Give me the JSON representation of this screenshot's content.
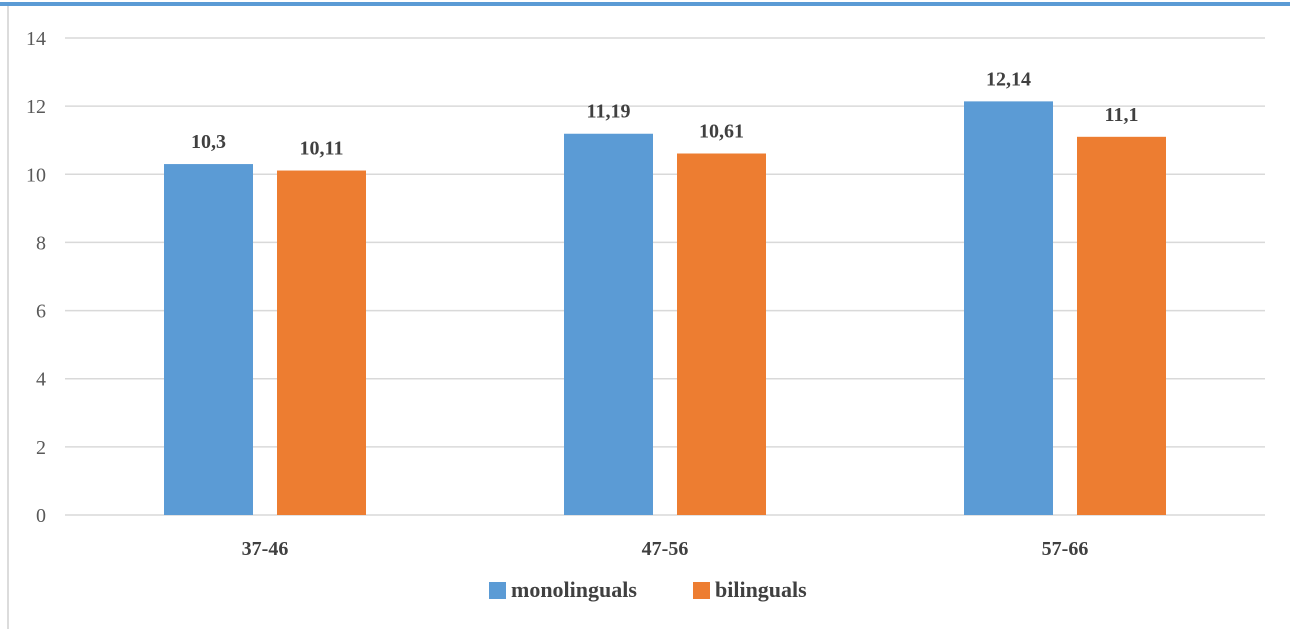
{
  "colors": {
    "top_rule": "#5b9bd5",
    "frame": "#d0d0d0",
    "grid": "#d9d9d9",
    "axis_text": "#595959",
    "label_text": "#404040"
  },
  "chart_data": {
    "type": "bar",
    "title": "",
    "xlabel": "",
    "ylabel": "",
    "categories": [
      "37-46",
      "47-56",
      "57-66"
    ],
    "series": [
      {
        "name": "monolinguals",
        "color": "#5b9bd5",
        "values": [
          10.3,
          11.19,
          12.14
        ],
        "labels": [
          "10,3",
          "11,19",
          "12,14"
        ]
      },
      {
        "name": "bilinguals",
        "color": "#ed7d31",
        "values": [
          10.11,
          10.61,
          11.1
        ],
        "labels": [
          "10,11",
          "10,61",
          "11,1"
        ]
      }
    ],
    "ylim": [
      0,
      14
    ],
    "yticks": [
      0,
      2,
      4,
      6,
      8,
      10,
      12,
      14
    ],
    "grid": true,
    "legend_position": "bottom"
  }
}
